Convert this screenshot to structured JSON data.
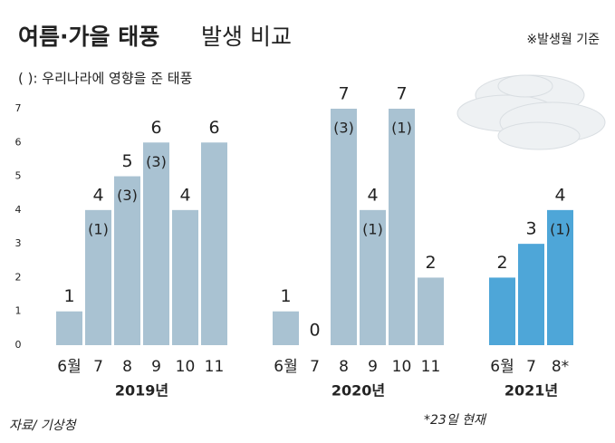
{
  "chart_data": {
    "type": "bar",
    "title": "여름·가을 태풍",
    "title_light": "발생 비교",
    "note": "※발생월 기준",
    "legend_note": "( ): 우리나라에 영향을 준 태풍",
    "source": "자료/ 기상청",
    "footnote": "*23일 현재",
    "ylim": [
      0,
      7
    ],
    "yticks": [
      0,
      1,
      2,
      3,
      4,
      5,
      6,
      7
    ],
    "grid": false,
    "groups": [
      {
        "name": "2019년",
        "color": "#a9c2d2",
        "categories": [
          "6월",
          "7",
          "8",
          "9",
          "10",
          "11"
        ],
        "values": [
          1,
          4,
          5,
          6,
          4,
          6
        ],
        "affected_labels": [
          null,
          "(1)",
          "(3)",
          "(3)",
          null,
          null
        ]
      },
      {
        "name": "2020년",
        "color": "#a9c2d2",
        "categories": [
          "6월",
          "7",
          "8",
          "9",
          "10",
          "11"
        ],
        "values": [
          1,
          0,
          7,
          4,
          7,
          2
        ],
        "affected_labels": [
          null,
          null,
          "(3)",
          "(1)",
          "(1)",
          null
        ]
      },
      {
        "name": "2021년",
        "color": "#4ea6d8",
        "categories": [
          "6월",
          "7",
          "8*"
        ],
        "values": [
          2,
          3,
          4
        ],
        "affected_labels": [
          null,
          null,
          "(1)"
        ]
      }
    ]
  }
}
